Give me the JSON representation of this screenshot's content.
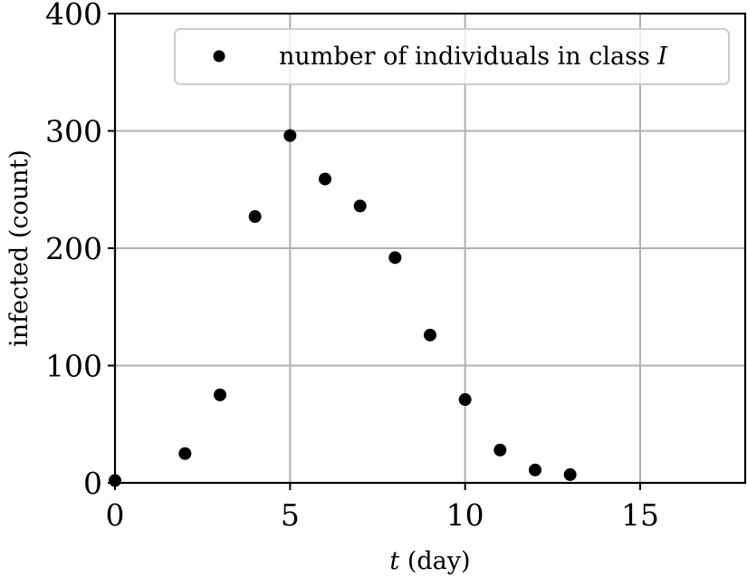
{
  "chart_data": {
    "type": "scatter",
    "title": "",
    "xlabel": "t (day)",
    "xlabel_var": "t",
    "xlabel_unit": " (day)",
    "ylabel": "infected (count)",
    "xlim": [
      0,
      18
    ],
    "ylim": [
      0,
      400
    ],
    "xticks": [
      0,
      5,
      10,
      15
    ],
    "yticks": [
      0,
      100,
      200,
      300,
      400
    ],
    "grid": true,
    "legend_position": "upper right",
    "series": [
      {
        "name": "number of individuals in class I",
        "legend_text": "number of individuals in class ",
        "legend_var": "I",
        "color": "#000000",
        "marker": "circle",
        "x": [
          0,
          2,
          3,
          4,
          5,
          6,
          7,
          8,
          9,
          10,
          11,
          12,
          13
        ],
        "y": [
          2,
          25,
          75,
          227,
          296,
          259,
          236,
          192,
          126,
          71,
          28,
          11,
          7
        ]
      }
    ]
  },
  "style": {
    "grid_color": "#b0b0b0",
    "axis_color": "#000000",
    "legend_border": "#cccccc"
  }
}
